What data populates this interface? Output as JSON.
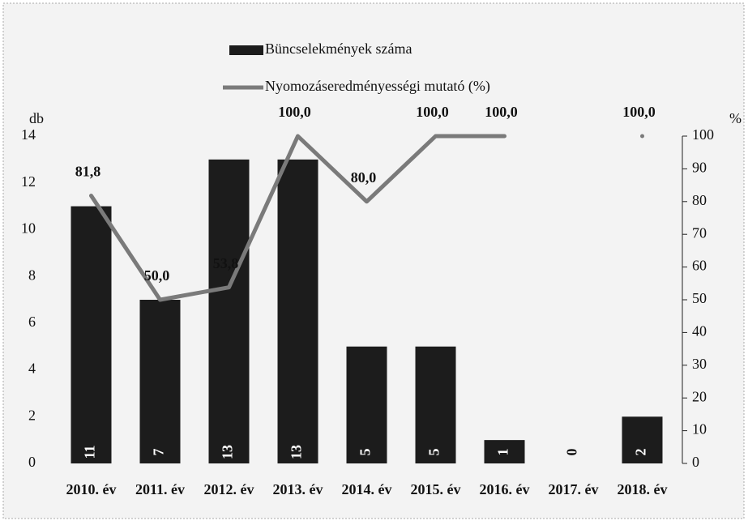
{
  "chart_data": {
    "type": "bar-line",
    "categories": [
      "2010. év",
      "2011. év",
      "2012. év",
      "2013. év",
      "2014. év",
      "2015. év",
      "2016. év",
      "2017. év",
      "2018. év"
    ],
    "series": [
      {
        "name": "Büncselekmények száma",
        "type": "bar",
        "color": "#1c1c1c",
        "values": [
          11,
          7,
          13,
          13,
          5,
          5,
          1,
          0,
          2
        ]
      },
      {
        "name": "Nyomozáseredményességi mutató (%)",
        "type": "line",
        "axis": "y2",
        "color": "#7a7a7a",
        "values": [
          81.8,
          50.0,
          53.8,
          100.0,
          80.0,
          100.0,
          100.0,
          null,
          100.0
        ],
        "value_labels": [
          "81,8",
          "50,0",
          "53,8",
          "100,0",
          "80,0",
          "100,0",
          "100,0",
          null,
          "100,0"
        ]
      }
    ],
    "ylabel": "db",
    "y2label": "%",
    "ylim": [
      0,
      14
    ],
    "yticks": [
      0,
      2,
      4,
      6,
      8,
      10,
      12,
      14
    ],
    "y2lim": [
      0,
      100
    ],
    "y2ticks": [
      0,
      10,
      20,
      30,
      40,
      50,
      60,
      70,
      80,
      90,
      100
    ]
  }
}
